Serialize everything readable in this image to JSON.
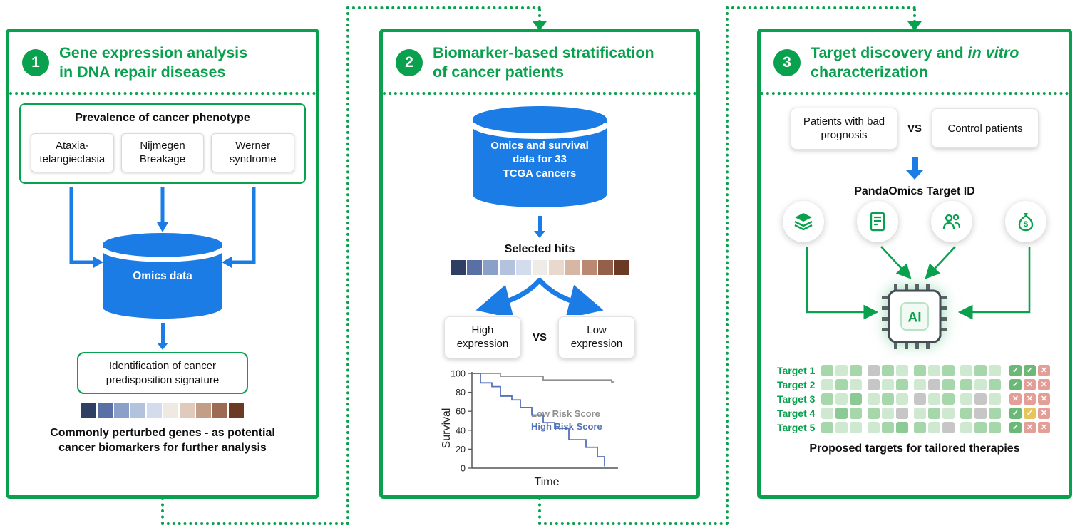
{
  "colors": {
    "green": "#0aa14e",
    "blue": "#1b7ce6",
    "low_risk_gray": "#8f8f8f",
    "high_risk_blue": "#5672b8"
  },
  "panel1": {
    "number": "1",
    "title_lines": [
      "Gene expression analysis",
      "in DNA repair diseases"
    ],
    "phenotype_title": "Prevalence of cancer phenotype",
    "diseases": [
      "Ataxia-telangiectasia",
      "Nijmegen Breakage",
      "Werner syndrome"
    ],
    "cylinder_label": "Omics data",
    "identification_label": "Identification of cancer predisposition signature",
    "heatmap_colors": [
      "#2e3f63",
      "#5a6fa5",
      "#8aa0c9",
      "#b3c3dd",
      "#d3dcec",
      "#efe9e4",
      "#e0cabb",
      "#c29e87",
      "#9c6b52",
      "#6b3a24"
    ],
    "caption_lines": [
      "Commonly perturbed genes - as potential",
      "cancer biomarkers for further analysis"
    ]
  },
  "panel2": {
    "number": "2",
    "title_lines": [
      "Biomarker-based stratification",
      "of cancer patients"
    ],
    "cylinder_lines": [
      "Omics and survival",
      "data for 33",
      "TCGA cancers"
    ],
    "selected_hits": "Selected hits",
    "heatmap_colors": [
      "#2e3f63",
      "#5a6fa5",
      "#8aa0c9",
      "#b3c3dd",
      "#d3dcec",
      "#efece8",
      "#e9d8cc",
      "#d6b7a4",
      "#b98a71",
      "#95604a",
      "#6b3a24"
    ],
    "high_label": "High expression",
    "vs": "VS",
    "low_label": "Low expression",
    "plot": {
      "type": "line",
      "ylabel": "Survival",
      "xlabel": "Time",
      "ylim": [
        0,
        100
      ],
      "yticks": [
        0,
        20,
        40,
        60,
        80,
        100
      ],
      "legend": [
        {
          "label": "Low Risk Score",
          "color": "#8f8f8f"
        },
        {
          "label": "High Risk Score",
          "color": "#5672b8"
        }
      ],
      "series": [
        {
          "name": "Low Risk Score",
          "color": "#8f8f8f",
          "points": [
            [
              0,
              100
            ],
            [
              20,
              100
            ],
            [
              20,
              97
            ],
            [
              50,
              97
            ],
            [
              50,
              93
            ],
            [
              98,
              93
            ],
            [
              98,
              91
            ],
            [
              100,
              91
            ]
          ]
        },
        {
          "name": "High Risk Score",
          "color": "#5672b8",
          "points": [
            [
              0,
              100
            ],
            [
              6,
              100
            ],
            [
              6,
              90
            ],
            [
              14,
              90
            ],
            [
              14,
              86
            ],
            [
              20,
              86
            ],
            [
              20,
              76
            ],
            [
              28,
              76
            ],
            [
              28,
              72
            ],
            [
              34,
              72
            ],
            [
              34,
              64
            ],
            [
              42,
              64
            ],
            [
              42,
              56
            ],
            [
              50,
              56
            ],
            [
              50,
              48
            ],
            [
              58,
              48
            ],
            [
              58,
              42
            ],
            [
              68,
              42
            ],
            [
              68,
              30
            ],
            [
              80,
              30
            ],
            [
              80,
              22
            ],
            [
              88,
              22
            ],
            [
              88,
              12
            ],
            [
              93,
              12
            ],
            [
              93,
              2
            ]
          ]
        }
      ]
    }
  },
  "panel3": {
    "number": "3",
    "title_pre": "Target discovery and ",
    "title_italic": "in vitro",
    "title_line2": "characterization",
    "bad_box": "Patients with bad prognosis",
    "vs": "VS",
    "control_box": "Control patients",
    "pandaomics": "PandaOmics Target ID",
    "icons": [
      "stacked-data-icon",
      "report-icon",
      "patients-group-icon",
      "funding-bag-icon"
    ],
    "ai_label": "AI",
    "grid": {
      "cell_palette": {
        "a": "#cfe9d0",
        "b": "#a6d7ab",
        "c": "#8bca94",
        "x": "#c6c6c6"
      },
      "mark_palette": {
        "green": "#6cb877",
        "red": "#e29e97",
        "yellow": "#e6c65c"
      },
      "rows": [
        {
          "label": "Target 1",
          "cells": [
            "b",
            "a",
            "b",
            "x",
            "b",
            "a",
            "b",
            "a",
            "b",
            "a",
            "b",
            "a"
          ],
          "marks": [
            [
              "✓",
              "green"
            ],
            [
              "✓",
              "green"
            ],
            [
              "✕",
              "red"
            ]
          ]
        },
        {
          "label": "Target 2",
          "cells": [
            "a",
            "b",
            "a",
            "x",
            "a",
            "b",
            "a",
            "x",
            "b",
            "b",
            "a",
            "b"
          ],
          "marks": [
            [
              "✓",
              "green"
            ],
            [
              "✕",
              "red"
            ],
            [
              "✕",
              "red"
            ]
          ]
        },
        {
          "label": "Target 3",
          "cells": [
            "b",
            "a",
            "c",
            "a",
            "b",
            "a",
            "x",
            "a",
            "b",
            "a",
            "x",
            "a"
          ],
          "marks": [
            [
              "✕",
              "red"
            ],
            [
              "✕",
              "red"
            ],
            [
              "✕",
              "red"
            ]
          ]
        },
        {
          "label": "Target 4",
          "cells": [
            "a",
            "c",
            "b",
            "b",
            "a",
            "x",
            "a",
            "b",
            "a",
            "b",
            "x",
            "b"
          ],
          "marks": [
            [
              "✓",
              "green"
            ],
            [
              "✓",
              "yellow"
            ],
            [
              "✕",
              "red"
            ]
          ]
        },
        {
          "label": "Target 5",
          "cells": [
            "b",
            "a",
            "a",
            "a",
            "b",
            "c",
            "b",
            "a",
            "x",
            "a",
            "b",
            "b"
          ],
          "marks": [
            [
              "✓",
              "green"
            ],
            [
              "✕",
              "red"
            ],
            [
              "✕",
              "red"
            ]
          ]
        }
      ]
    },
    "caption": "Proposed targets for tailored therapies"
  }
}
